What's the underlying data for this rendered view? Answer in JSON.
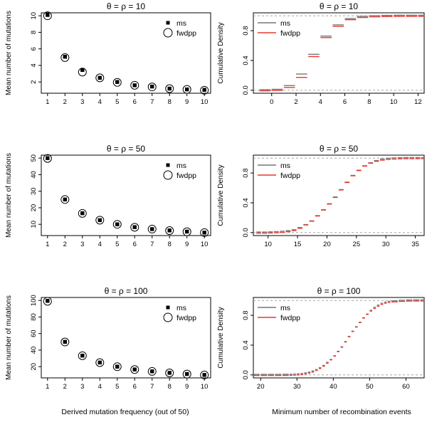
{
  "figure": {
    "xlabel_left": "Derived mutation frequency (out of 50)",
    "xlabel_right": "Minimum number of recombination events"
  },
  "chart_data": [
    {
      "type": "scatter",
      "title": "θ = ρ = 10",
      "xlabel": "",
      "ylabel": "Mean number of mutations",
      "x": [
        1,
        2,
        3,
        4,
        5,
        6,
        7,
        8,
        9,
        10
      ],
      "xticks": [
        1,
        2,
        3,
        4,
        5,
        6,
        7,
        8,
        9,
        10
      ],
      "xlim": [
        1,
        10
      ],
      "ylim": [
        1,
        10
      ],
      "yticks": [
        2,
        4,
        6,
        8,
        10
      ],
      "legend": "top-right",
      "series": [
        {
          "name": "ms",
          "marker": "filled-square",
          "color": "#000000",
          "values": [
            10.1,
            5.05,
            3.45,
            2.5,
            2.0,
            1.6,
            1.45,
            1.2,
            1.1,
            1.05
          ]
        },
        {
          "name": "fwdpp",
          "marker": "open-circle",
          "color": "#000000",
          "values": [
            10.0,
            4.95,
            3.2,
            2.5,
            1.95,
            1.6,
            1.4,
            1.2,
            1.1,
            1.0
          ]
        }
      ]
    },
    {
      "type": "line",
      "step": true,
      "title": "θ = ρ = 10",
      "xlabel": "",
      "ylabel": "Cumulative Density",
      "xlim": [
        -1.5,
        12.5
      ],
      "ylim": [
        0,
        1
      ],
      "xticks": [
        0,
        2,
        4,
        6,
        8,
        10,
        12
      ],
      "yticks": [
        0.0,
        0.4,
        0.8
      ],
      "reference_lines": [
        0,
        1
      ],
      "legend": "top-left",
      "series": [
        {
          "name": "ms",
          "color": "#777777",
          "x": [
            -1,
            0,
            1,
            2,
            3,
            4,
            5,
            6,
            7,
            8,
            9,
            10,
            11,
            12
          ],
          "values": [
            0.0,
            0.005,
            0.055,
            0.21,
            0.475,
            0.72,
            0.87,
            0.955,
            0.985,
            0.994,
            0.998,
            1.0,
            1.0,
            1.0
          ]
        },
        {
          "name": "fwdpp",
          "color": "#e8392f",
          "x": [
            -1,
            0,
            1,
            2,
            3,
            4,
            5,
            6,
            7,
            8,
            9,
            10,
            11,
            12
          ],
          "values": [
            0.0,
            0.005,
            0.045,
            0.18,
            0.46,
            0.715,
            0.865,
            0.955,
            0.985,
            0.994,
            0.998,
            1.0,
            1.0,
            1.0
          ]
        }
      ]
    },
    {
      "type": "scatter",
      "title": "θ = ρ = 50",
      "xlabel": "",
      "ylabel": "Mean number of mutations",
      "x": [
        1,
        2,
        3,
        4,
        5,
        6,
        7,
        8,
        9,
        10
      ],
      "xticks": [
        1,
        2,
        3,
        4,
        5,
        6,
        7,
        8,
        9,
        10
      ],
      "xlim": [
        1,
        10
      ],
      "ylim": [
        5,
        50
      ],
      "yticks": [
        10,
        20,
        30,
        40,
        50
      ],
      "legend": "top-right",
      "series": [
        {
          "name": "ms",
          "marker": "filled-square",
          "color": "#000000",
          "values": [
            50.0,
            25.0,
            16.7,
            12.5,
            10.0,
            8.3,
            7.1,
            6.3,
            5.6,
            5.0
          ]
        },
        {
          "name": "fwdpp",
          "marker": "open-circle",
          "color": "#000000",
          "values": [
            49.8,
            25.0,
            16.6,
            12.5,
            10.0,
            8.2,
            7.1,
            6.2,
            5.5,
            5.0
          ]
        }
      ]
    },
    {
      "type": "line",
      "step": true,
      "title": "θ = ρ = 50",
      "xlabel": "",
      "ylabel": "Cumulative Density",
      "xlim": [
        7.5,
        36.5
      ],
      "ylim": [
        0,
        1
      ],
      "xticks": [
        10,
        15,
        20,
        25,
        30,
        35
      ],
      "yticks": [
        0.0,
        0.4,
        0.8
      ],
      "reference_lines": [
        0,
        1
      ],
      "legend": "top-left",
      "series": [
        {
          "name": "ms",
          "color": "#777777",
          "x": [
            8,
            9,
            10,
            11,
            12,
            13,
            14,
            15,
            16,
            17,
            18,
            19,
            20,
            21,
            22,
            23,
            24,
            25,
            26,
            27,
            28,
            29,
            30,
            31,
            32,
            33,
            34,
            35,
            36
          ],
          "values": [
            0.0,
            0.0,
            0.002,
            0.005,
            0.01,
            0.018,
            0.03,
            0.06,
            0.1,
            0.15,
            0.22,
            0.3,
            0.38,
            0.47,
            0.57,
            0.67,
            0.76,
            0.83,
            0.89,
            0.93,
            0.96,
            0.98,
            0.99,
            0.995,
            0.998,
            1.0,
            1.0,
            1.0,
            1.0
          ]
        },
        {
          "name": "fwdpp",
          "color": "#e8392f",
          "x": [
            8,
            9,
            10,
            11,
            12,
            13,
            14,
            15,
            16,
            17,
            18,
            19,
            20,
            21,
            22,
            23,
            24,
            25,
            26,
            27,
            28,
            29,
            30,
            31,
            32,
            33,
            34,
            35,
            36
          ],
          "values": [
            0.0,
            0.0,
            0.002,
            0.005,
            0.01,
            0.02,
            0.035,
            0.065,
            0.11,
            0.16,
            0.23,
            0.31,
            0.39,
            0.48,
            0.58,
            0.68,
            0.77,
            0.84,
            0.9,
            0.94,
            0.965,
            0.98,
            0.99,
            0.995,
            0.998,
            1.0,
            1.0,
            1.0,
            1.0
          ]
        }
      ]
    },
    {
      "type": "scatter",
      "title": "θ = ρ = 100",
      "xlabel": "",
      "ylabel": "Mean number of mutations",
      "x": [
        1,
        2,
        3,
        4,
        5,
        6,
        7,
        8,
        9,
        10
      ],
      "xticks": [
        1,
        2,
        3,
        4,
        5,
        6,
        7,
        8,
        9,
        10
      ],
      "xlim": [
        1,
        10
      ],
      "ylim": [
        10,
        100
      ],
      "yticks": [
        20,
        40,
        60,
        80,
        100
      ],
      "legend": "top-right",
      "series": [
        {
          "name": "ms",
          "marker": "filled-square",
          "color": "#000000",
          "values": [
            99.5,
            50.0,
            33.3,
            25.0,
            20.0,
            16.6,
            14.3,
            12.5,
            11.1,
            10.0
          ]
        },
        {
          "name": "fwdpp",
          "marker": "open-circle",
          "color": "#000000",
          "values": [
            99.0,
            49.8,
            33.2,
            24.9,
            19.9,
            16.5,
            14.2,
            12.4,
            11.0,
            9.9
          ]
        }
      ]
    },
    {
      "type": "line",
      "step": true,
      "title": "θ = ρ = 100",
      "xlabel": "",
      "ylabel": "Cumulative Density",
      "xlim": [
        18,
        65
      ],
      "ylim": [
        0,
        1
      ],
      "xticks": [
        20,
        30,
        40,
        50,
        60
      ],
      "yticks": [
        0.0,
        0.4,
        0.8
      ],
      "reference_lines": [
        0,
        1
      ],
      "legend": "top-left",
      "series": [
        {
          "name": "ms",
          "color": "#777777",
          "x": [
            18,
            20,
            22,
            24,
            26,
            28,
            29,
            30,
            31,
            32,
            33,
            34,
            35,
            36,
            37,
            38,
            39,
            40,
            41,
            42,
            43,
            44,
            45,
            46,
            47,
            48,
            49,
            50,
            51,
            52,
            53,
            54,
            55,
            56,
            58,
            60,
            62,
            64
          ],
          "values": [
            0.0,
            0.0,
            0.0,
            0.0,
            0.001,
            0.002,
            0.004,
            0.007,
            0.012,
            0.02,
            0.03,
            0.045,
            0.065,
            0.09,
            0.12,
            0.16,
            0.2,
            0.25,
            0.31,
            0.37,
            0.44,
            0.51,
            0.58,
            0.64,
            0.7,
            0.76,
            0.81,
            0.86,
            0.9,
            0.93,
            0.955,
            0.97,
            0.98,
            0.988,
            0.995,
            0.999,
            1.0,
            1.0
          ]
        },
        {
          "name": "fwdpp",
          "color": "#e8392f",
          "x": [
            18,
            20,
            22,
            24,
            26,
            28,
            29,
            30,
            31,
            32,
            33,
            34,
            35,
            36,
            37,
            38,
            39,
            40,
            41,
            42,
            43,
            44,
            45,
            46,
            47,
            48,
            49,
            50,
            51,
            52,
            53,
            54,
            55,
            56,
            58,
            60,
            62,
            64
          ],
          "values": [
            0.0,
            0.0,
            0.0,
            0.0,
            0.001,
            0.002,
            0.004,
            0.007,
            0.012,
            0.021,
            0.032,
            0.047,
            0.067,
            0.093,
            0.125,
            0.165,
            0.21,
            0.26,
            0.32,
            0.38,
            0.45,
            0.52,
            0.59,
            0.65,
            0.71,
            0.77,
            0.82,
            0.865,
            0.9,
            0.93,
            0.955,
            0.97,
            0.98,
            0.988,
            0.995,
            0.999,
            1.0,
            1.0
          ]
        }
      ]
    }
  ]
}
